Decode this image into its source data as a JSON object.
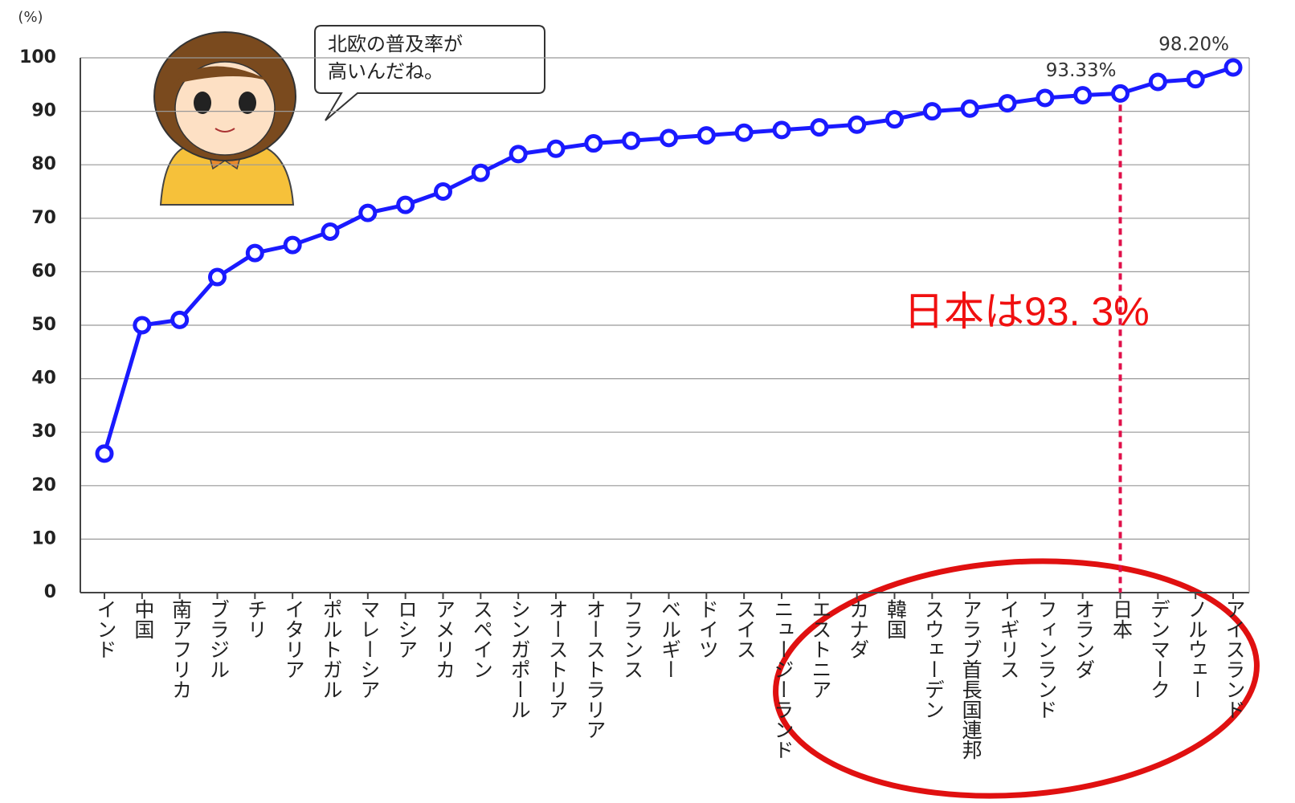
{
  "chart_data": {
    "type": "line",
    "y_unit_label": "(%)",
    "categories": [
      "インド",
      "中国",
      "南アフリカ",
      "ブラジル",
      "チリ",
      "イタリア",
      "ポルトガル",
      "マレーシア",
      "ロシア",
      "アメリカ",
      "スペイン",
      "シンガポール",
      "オーストリア",
      "オーストラリア",
      "フランス",
      "ベルギー",
      "ドイツ",
      "スイス",
      "ニュージーランド",
      "エストニア",
      "カナダ",
      "韓国",
      "スウェーデン",
      "アラブ首長国連邦",
      "イギリス",
      "フィンランド",
      "オランダ",
      "日本",
      "デンマーク",
      "ノルウェー",
      "アイスランド"
    ],
    "values": [
      26,
      50,
      51,
      59,
      63.5,
      65,
      67.5,
      71,
      72.5,
      75,
      78.5,
      82,
      83,
      84,
      84.5,
      85,
      85.5,
      86,
      86.5,
      87,
      87.5,
      88.5,
      90,
      90.5,
      91.5,
      92.5,
      93,
      93.33,
      95.5,
      96,
      98.2
    ],
    "value_labels": [
      null,
      null,
      null,
      null,
      null,
      null,
      null,
      null,
      null,
      null,
      null,
      null,
      null,
      null,
      null,
      null,
      null,
      null,
      null,
      null,
      null,
      null,
      null,
      null,
      null,
      null,
      null,
      "93.33%",
      null,
      null,
      "98.20%"
    ],
    "color": "#1a1aff",
    "ylim": [
      0,
      100
    ],
    "yticks": [
      0,
      10,
      20,
      30,
      40,
      50,
      60,
      70,
      80,
      90,
      100
    ],
    "grid": true,
    "speech_bubble": [
      "北欧の普及率が",
      "高いんだね。"
    ],
    "annotation": "日本は93. 3%",
    "highlight_index": 27
  }
}
